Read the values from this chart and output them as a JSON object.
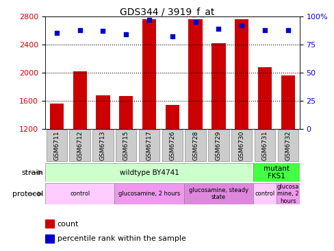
{
  "title": "GDS344 / 3919_f_at",
  "samples": [
    "GSM6711",
    "GSM6712",
    "GSM6713",
    "GSM6715",
    "GSM6717",
    "GSM6726",
    "GSM6728",
    "GSM6729",
    "GSM6730",
    "GSM6731",
    "GSM6732"
  ],
  "counts": [
    1560,
    2020,
    1680,
    1670,
    2760,
    1540,
    2760,
    2420,
    2760,
    2080,
    1960
  ],
  "percentile_ranks": [
    85,
    88,
    87,
    84,
    97,
    82,
    95,
    89,
    92,
    88,
    88
  ],
  "ylim_left": [
    1200,
    2800
  ],
  "ylim_right": [
    0,
    100
  ],
  "left_yticks": [
    1200,
    1600,
    2000,
    2400,
    2800
  ],
  "right_yticks": [
    0,
    25,
    50,
    75,
    100
  ],
  "bar_color": "#cc0000",
  "dot_color": "#0000cc",
  "strain_groups": [
    {
      "label": "wildtype BY4741",
      "start": 0,
      "end": 9,
      "color": "#ccffcc"
    },
    {
      "label": "mutant\nFKS1",
      "start": 9,
      "end": 11,
      "color": "#44ff44"
    }
  ],
  "protocol_groups": [
    {
      "label": "control",
      "start": 0,
      "end": 3,
      "color": "#ffccff"
    },
    {
      "label": "glucosamine, 2 hours",
      "start": 3,
      "end": 6,
      "color": "#ee99ee"
    },
    {
      "label": "glucosamine, steady\nstate",
      "start": 6,
      "end": 9,
      "color": "#dd88dd"
    },
    {
      "label": "control",
      "start": 9,
      "end": 10,
      "color": "#ffccff"
    },
    {
      "label": "glucosa\nmine, 2\nhours",
      "start": 10,
      "end": 11,
      "color": "#ee99ee"
    }
  ],
  "legend_items": [
    {
      "color": "#cc0000",
      "label": "count"
    },
    {
      "color": "#0000cc",
      "label": "percentile rank within the sample"
    }
  ],
  "background_color": "#ffffff",
  "tick_label_color_left": "#cc0000",
  "tick_label_color_right": "#0000cc",
  "sample_box_color": "#cccccc",
  "sample_box_edge": "#888888"
}
